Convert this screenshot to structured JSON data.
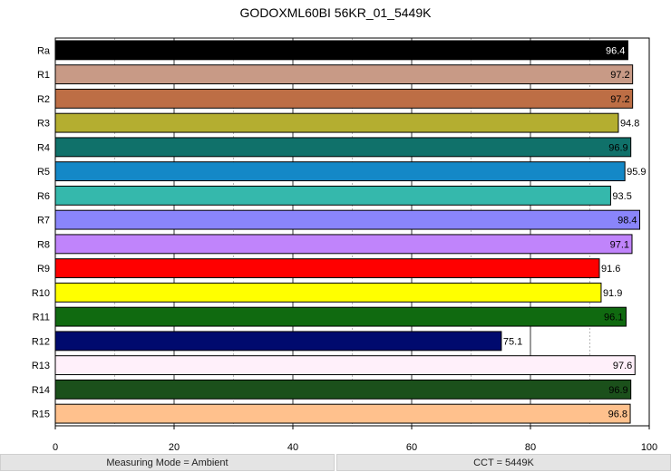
{
  "chart_data": {
    "type": "bar",
    "orientation": "horizontal",
    "title": "GODOXML60BI 56KR_01_5449K",
    "xlabel": "",
    "ylabel": "",
    "xlim": [
      0,
      100
    ],
    "x_ticks": [
      0,
      20,
      40,
      60,
      80,
      100
    ],
    "grid": "vertical dashed at 10s, solid at 20s",
    "categories": [
      "Ra",
      "R1",
      "R2",
      "R3",
      "R4",
      "R5",
      "R6",
      "R7",
      "R8",
      "R9",
      "R10",
      "R11",
      "R12",
      "R13",
      "R14",
      "R15"
    ],
    "values": [
      96.4,
      97.2,
      97.2,
      94.8,
      96.9,
      95.9,
      93.5,
      98.4,
      97.1,
      91.6,
      91.9,
      96.1,
      75.1,
      97.6,
      96.9,
      96.8
    ],
    "value_labels": [
      "96.4",
      "97.2",
      "97.2",
      "94.8",
      "96.9",
      "95.9",
      "93.5",
      "98.4",
      "97.1",
      "91.6",
      "91.9",
      "96.1",
      "75.1",
      "97.6",
      "96.9",
      "96.8"
    ],
    "colors": [
      "#000000",
      "#c89a86",
      "#bd6e45",
      "#b4ae30",
      "#10716a",
      "#1488c7",
      "#35b8ac",
      "#8a85fb",
      "#c084fb",
      "#ff0000",
      "#ffff00",
      "#106a10",
      "#000a6e",
      "#fff0fa",
      "#1b501b",
      "#ffc18d"
    ]
  },
  "footer": {
    "measuring_mode": "Measuring Mode = Ambient",
    "cct": "CCT = 5449K"
  }
}
